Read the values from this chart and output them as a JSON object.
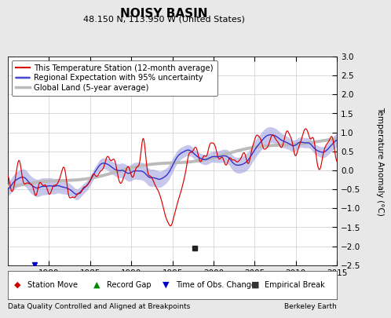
{
  "title": "NOISY BASIN",
  "subtitle": "48.150 N, 113.950 W (United States)",
  "ylabel": "Temperature Anomaly (°C)",
  "footer_left": "Data Quality Controlled and Aligned at Breakpoints",
  "footer_right": "Berkeley Earth",
  "xlim": [
    1975,
    2015
  ],
  "ylim": [
    -2.5,
    3.0
  ],
  "yticks": [
    -2.5,
    -2,
    -1.5,
    -1,
    -0.5,
    0,
    0.5,
    1,
    1.5,
    2,
    2.5,
    3
  ],
  "xticks": [
    1980,
    1985,
    1990,
    1995,
    2000,
    2005,
    2010,
    2015
  ],
  "legend_entries": [
    "This Temperature Station (12-month average)",
    "Regional Expectation with 95% uncertainty",
    "Global Land (5-year average)"
  ],
  "station_color": "#dd0000",
  "regional_color": "#3333cc",
  "regional_band_color": "#9999dd",
  "global_color": "#bbbbbb",
  "background_color": "#e8e8e8",
  "plot_bg_color": "#ffffff",
  "grid_color": "#cccccc",
  "obs_change_year": 1978.2,
  "emp_break_year": 1997.7,
  "emp_break_y": -2.05
}
